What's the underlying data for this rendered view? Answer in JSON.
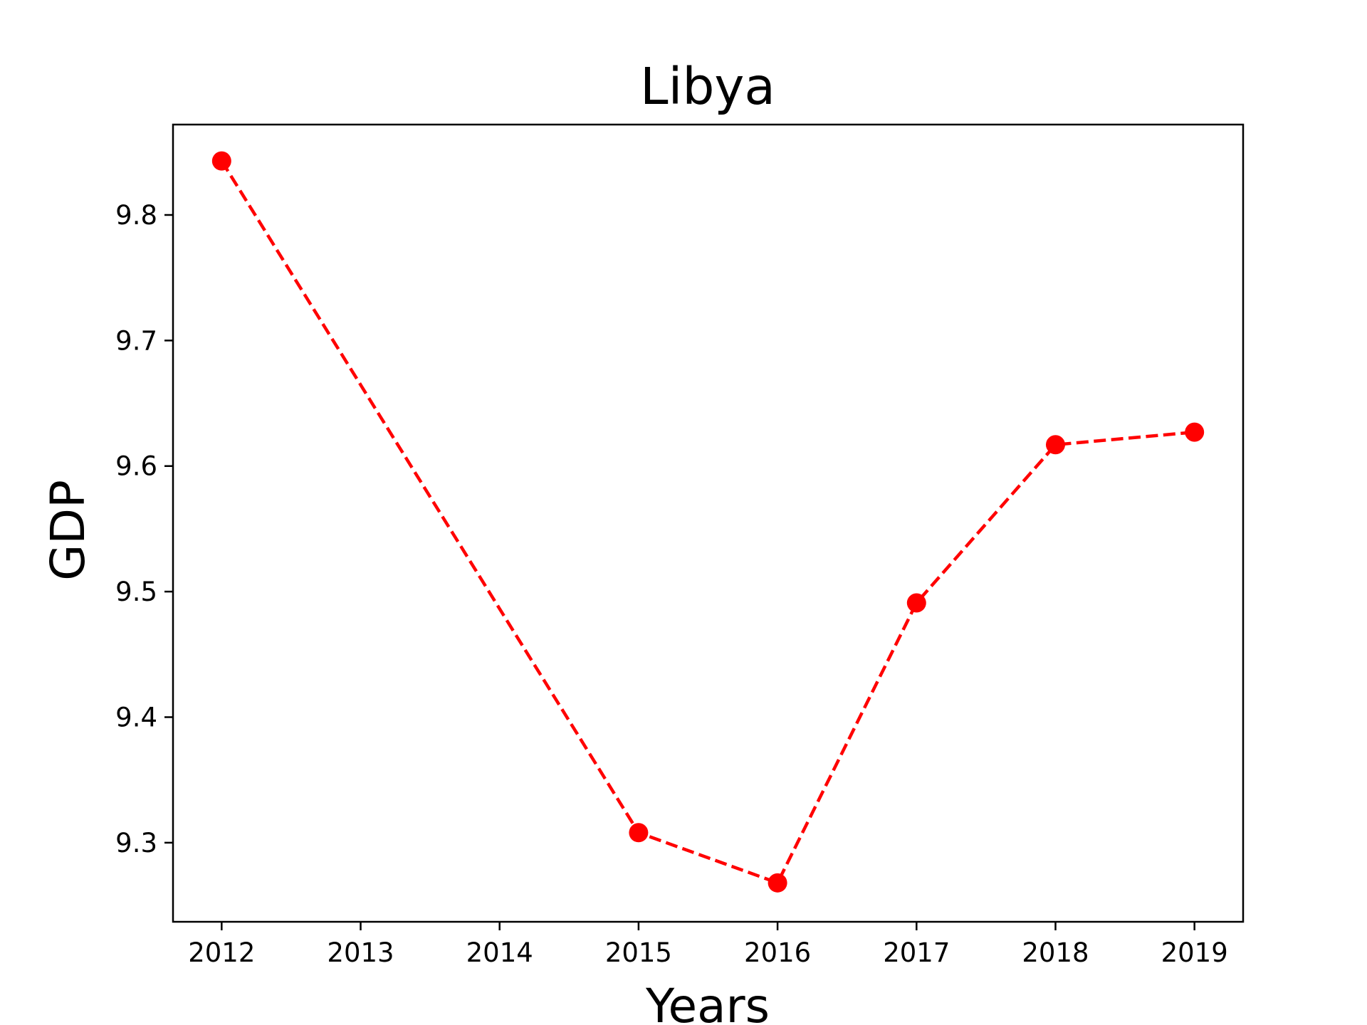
{
  "chart_data": {
    "type": "line",
    "title": "Libya",
    "xlabel": "Years",
    "ylabel": "GDP",
    "x": [
      2012,
      2015,
      2016,
      2017,
      2018,
      2019
    ],
    "x_ticks": [
      "2012",
      "2013",
      "2014",
      "2015",
      "2016",
      "2017",
      "2018",
      "2019"
    ],
    "y_ticks": [
      "9.3",
      "9.4",
      "9.5",
      "9.6",
      "9.7",
      "9.8"
    ],
    "xlim": [
      2011.65,
      2019.35
    ],
    "ylim": [
      9.237,
      9.872
    ],
    "series": [
      {
        "values": [
          9.843,
          9.308,
          9.268,
          9.491,
          9.617,
          9.627
        ]
      }
    ],
    "line_style": "dashed",
    "marker": "circle",
    "grid": false,
    "colors": {
      "series": "#ff0000",
      "axes": "#000000",
      "background": "#ffffff"
    }
  }
}
